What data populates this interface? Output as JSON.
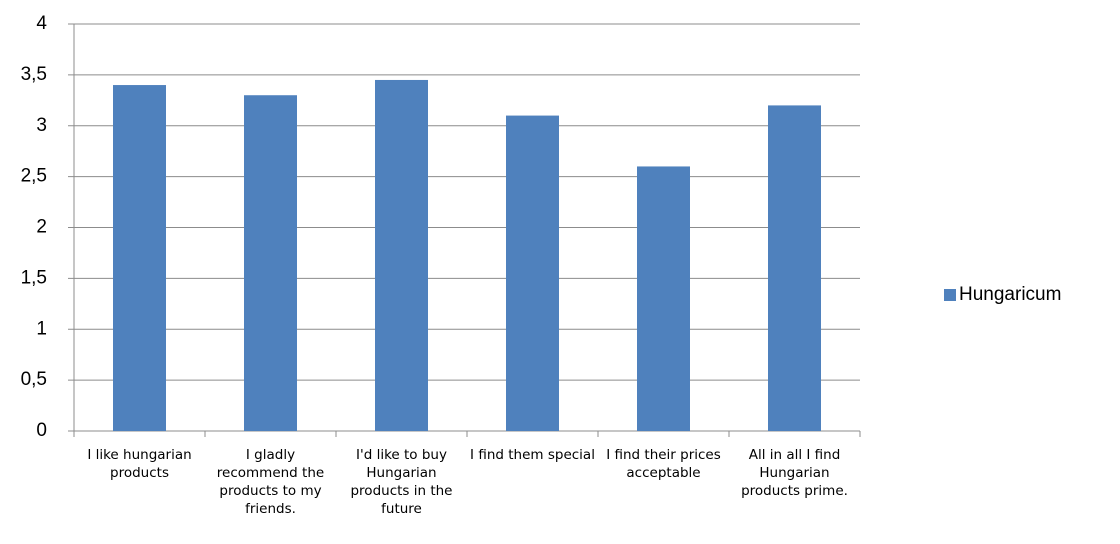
{
  "chart_data": {
    "type": "bar",
    "categories": [
      "I like hungarian products",
      "I gladly recommend the products to my friends.",
      "I'd like to buy Hungarian products in the future",
      "I find them special",
      "I find their prices acceptable",
      "All in all I find Hungarian products prime."
    ],
    "series": [
      {
        "name": "Hungaricum",
        "color": "#4f81bd",
        "values": [
          3.4,
          3.3,
          3.45,
          3.1,
          2.6,
          3.2
        ]
      }
    ],
    "ylim": [
      0,
      4
    ],
    "yticks": [
      0,
      {
        "value": 0.5,
        "label": "0,5"
      },
      1,
      {
        "value": 1.5,
        "label": "1,5"
      },
      2,
      {
        "value": 2.5,
        "label": "2,5"
      },
      3,
      {
        "value": 3.5,
        "label": "3,5"
      },
      4
    ],
    "grid": true,
    "legend": "right"
  }
}
